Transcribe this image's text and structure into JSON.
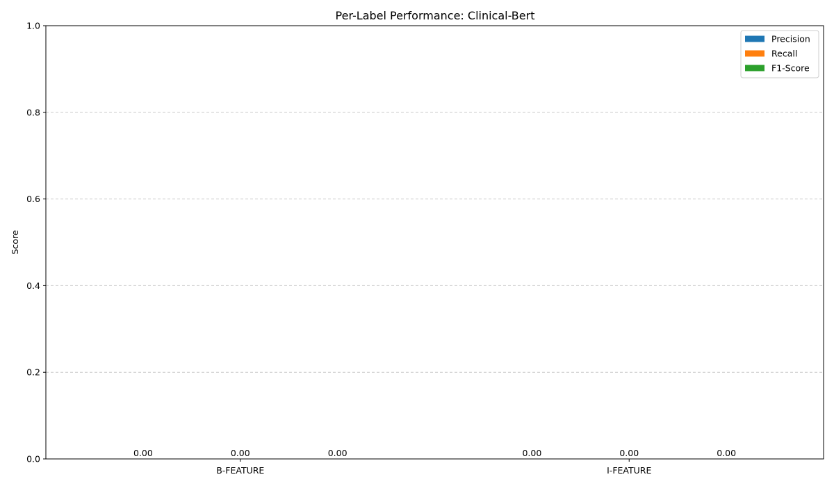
{
  "chart_data": {
    "type": "bar",
    "title": "Per-Label Performance: Clinical-Bert",
    "xlabel": "",
    "ylabel": "Score",
    "ylim": [
      0,
      1.0
    ],
    "yticks": [
      "0.0",
      "0.2",
      "0.4",
      "0.6",
      "0.8",
      "1.0"
    ],
    "grid": "y-dashed",
    "legend_position": "top-right",
    "categories": [
      "B-FEATURE",
      "I-FEATURE"
    ],
    "series": [
      {
        "name": "Precision",
        "color": "#1f77b4",
        "values": [
          0.0,
          0.0
        ],
        "labels": [
          "0.00",
          "0.00"
        ]
      },
      {
        "name": "Recall",
        "color": "#ff7f0e",
        "values": [
          0.0,
          0.0
        ],
        "labels": [
          "0.00",
          "0.00"
        ]
      },
      {
        "name": "F1-Score",
        "color": "#2ca02c",
        "values": [
          0.0,
          0.0
        ],
        "labels": [
          "0.00",
          "0.00"
        ]
      }
    ]
  }
}
